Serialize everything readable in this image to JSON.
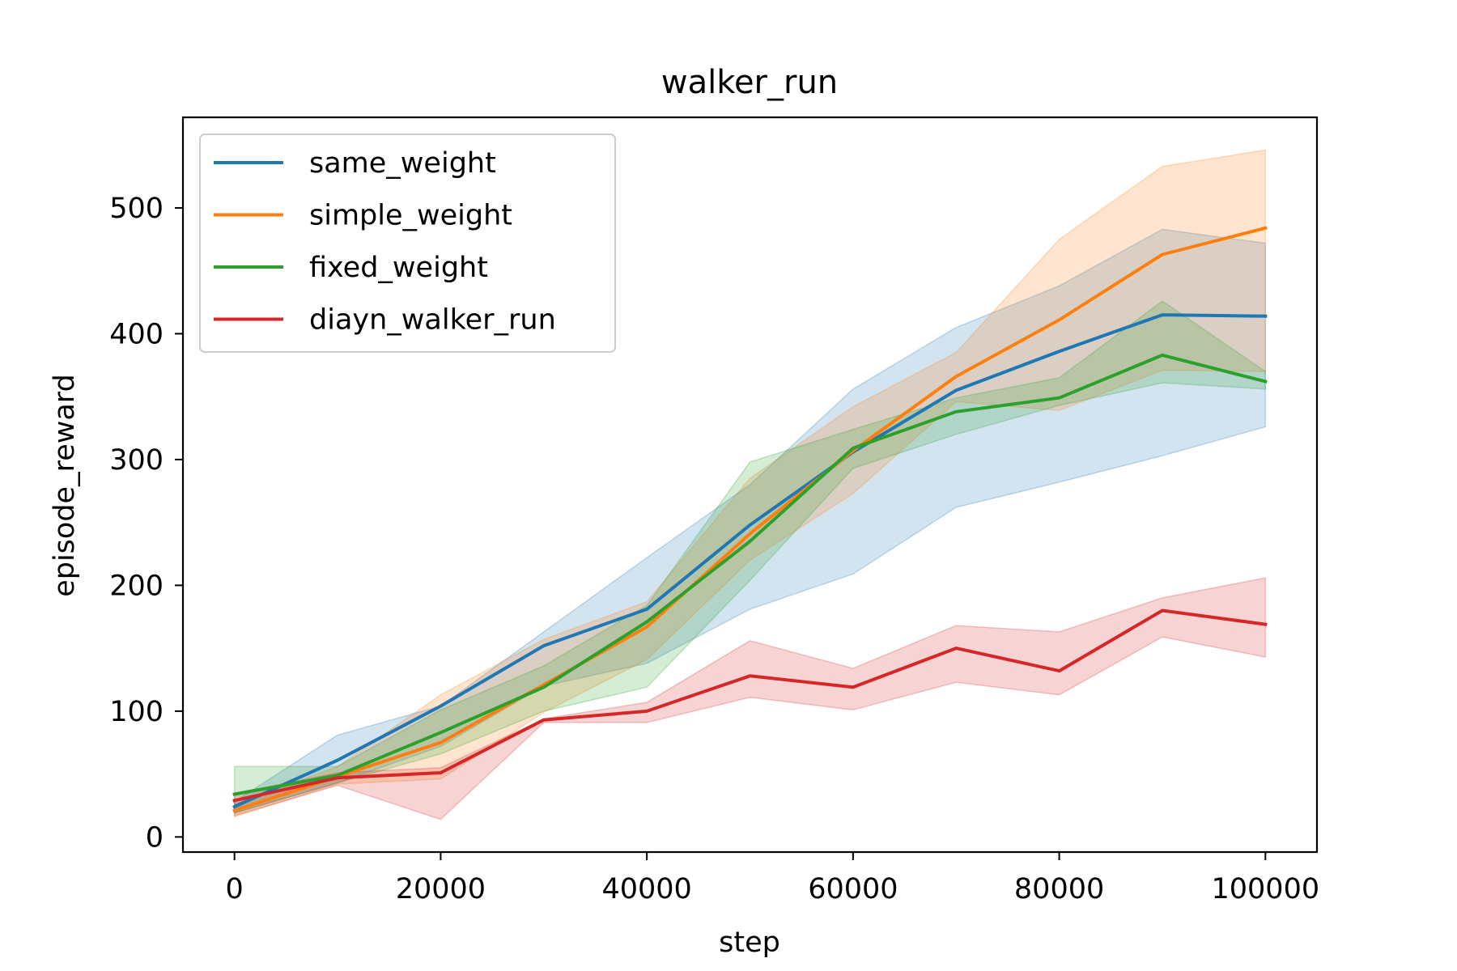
{
  "chart_data": {
    "type": "line",
    "title": "walker_run",
    "xlabel": "step",
    "ylabel": "episode_reward",
    "xlim": [
      -5000,
      105000
    ],
    "ylim": [
      -12,
      572
    ],
    "xticks": [
      0,
      20000,
      40000,
      60000,
      80000,
      100000
    ],
    "xtick_labels": [
      "0",
      "20000",
      "40000",
      "60000",
      "80000",
      "100000"
    ],
    "yticks": [
      0,
      100,
      200,
      300,
      400,
      500
    ],
    "ytick_labels": [
      "0",
      "100",
      "200",
      "300",
      "400",
      "500"
    ],
    "grid": false,
    "legend_position": "upper-left",
    "shaded_band": "range across runs",
    "x": [
      0,
      10000,
      20000,
      30000,
      40000,
      50000,
      60000,
      70000,
      80000,
      90000,
      100000
    ],
    "series": [
      {
        "name": "same_weight",
        "color": "#1f77b4",
        "values": [
          24,
          61,
          104,
          152,
          181,
          248,
          306,
          355,
          386,
          415,
          414
        ],
        "lower": [
          19,
          43,
          72,
          120,
          138,
          181,
          209,
          262,
          282,
          303,
          326
        ],
        "upper": [
          28,
          81,
          104,
          163,
          222,
          280,
          356,
          405,
          438,
          483,
          472
        ]
      },
      {
        "name": "simple_weight",
        "color": "#ff7f0e",
        "values": [
          21,
          48,
          75,
          121,
          167,
          241,
          307,
          366,
          411,
          463,
          484
        ],
        "lower": [
          16,
          42,
          46,
          99,
          141,
          220,
          273,
          346,
          339,
          371,
          370
        ],
        "upper": [
          26,
          56,
          113,
          157,
          187,
          285,
          342,
          385,
          475,
          533,
          546
        ]
      },
      {
        "name": "fixed_weight",
        "color": "#2ca02c",
        "values": [
          34,
          49,
          83,
          119,
          171,
          235,
          309,
          338,
          349,
          383,
          362
        ],
        "lower": [
          19,
          43,
          66,
          100,
          119,
          204,
          293,
          320,
          343,
          361,
          356
        ],
        "upper": [
          56,
          56,
          101,
          136,
          184,
          298,
          324,
          349,
          365,
          426,
          370
        ]
      },
      {
        "name": "diayn_walker_run",
        "color": "#d62728",
        "values": [
          29,
          47,
          51,
          93,
          100,
          128,
          119,
          150,
          132,
          180,
          169
        ],
        "lower": [
          17,
          41,
          14,
          91,
          91,
          111,
          101,
          123,
          113,
          159,
          143
        ],
        "upper": [
          34,
          51,
          55,
          94,
          107,
          156,
          134,
          168,
          163,
          190,
          206
        ]
      }
    ]
  }
}
